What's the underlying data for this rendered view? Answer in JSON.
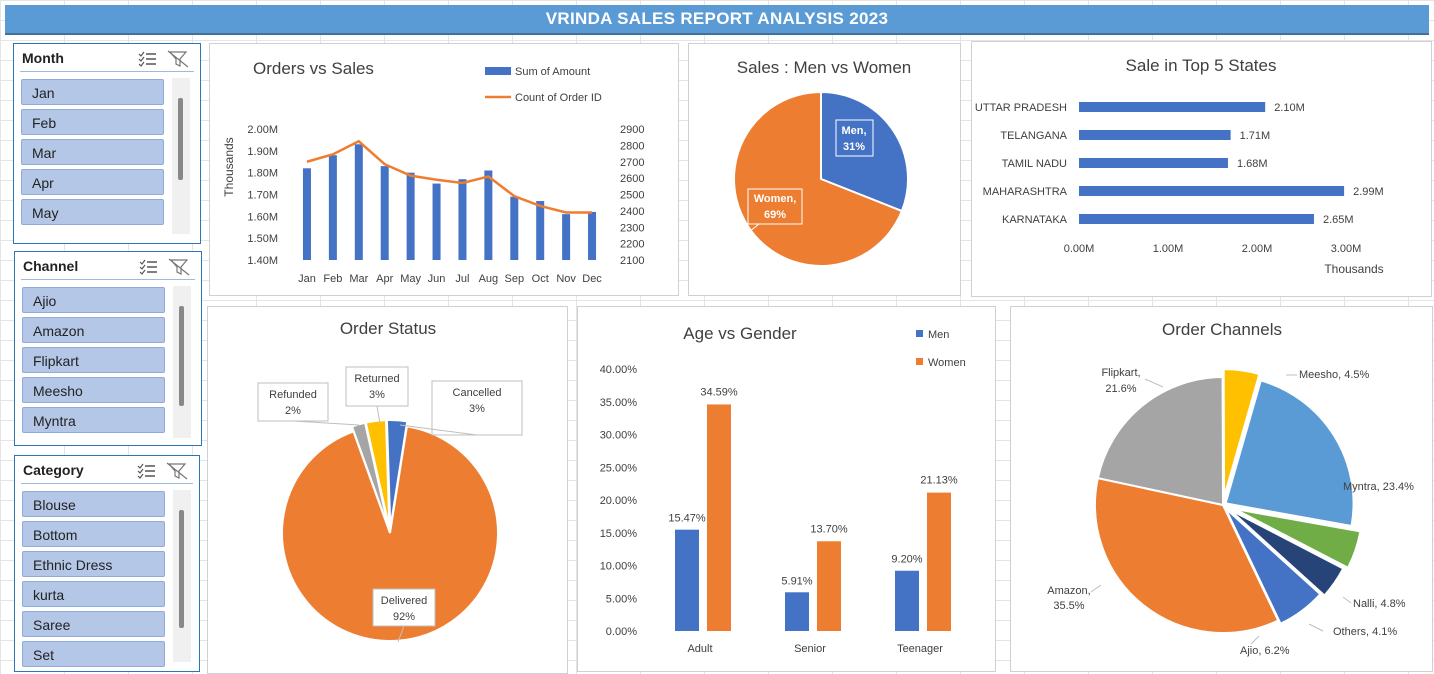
{
  "title": "VRINDA SALES REPORT ANALYSIS 2023",
  "colors": {
    "blue": "#4472c4",
    "orange": "#ed7d31",
    "gray": "#a5a5a5",
    "gold": "#ffc000",
    "light_blue": "#5b9bd5",
    "green": "#70ad47",
    "navy": "#264478",
    "banner": "#5b9bd5",
    "slicer_item": "#b4c7e7"
  },
  "slicers": {
    "month": {
      "header": "Month",
      "items": [
        "Jan",
        "Feb",
        "Mar",
        "Apr",
        "May"
      ]
    },
    "channel": {
      "header": "Channel",
      "items": [
        "Ajio",
        "Amazon",
        "Flipkart",
        "Meesho",
        "Myntra"
      ]
    },
    "category": {
      "header": "Category",
      "items": [
        "Blouse",
        "Bottom",
        "Ethnic Dress",
        "kurta",
        "Saree",
        "Set"
      ]
    }
  },
  "icons": {
    "multi_select": "multi-select-icon",
    "clear_filter": "clear-filter-icon"
  },
  "chart_data": [
    {
      "id": "orders_vs_sales",
      "type": "bar",
      "title": "Orders vs Sales",
      "categories": [
        "Jan",
        "Feb",
        "Mar",
        "Apr",
        "May",
        "Jun",
        "Jul",
        "Aug",
        "Sep",
        "Oct",
        "Nov",
        "Dec"
      ],
      "series": [
        {
          "name": "Sum of Amount",
          "type": "bar",
          "axis": "left",
          "values": [
            1.82,
            1.88,
            1.93,
            1.83,
            1.8,
            1.75,
            1.77,
            1.81,
            1.69,
            1.67,
            1.61,
            1.62
          ]
        },
        {
          "name": "Count of Order ID",
          "type": "line",
          "axis": "right",
          "values": [
            2700,
            2745,
            2825,
            2685,
            2615,
            2590,
            2570,
            2610,
            2490,
            2430,
            2390,
            2390
          ]
        }
      ],
      "ylabel": "Thousands",
      "y_left_ticks": [
        "2.00M",
        "1.90M",
        "1.80M",
        "1.70M",
        "1.60M",
        "1.50M",
        "1.40M"
      ],
      "ylim_left": [
        1.4,
        2.0
      ],
      "y_right_ticks": [
        "2900",
        "2800",
        "2700",
        "2600",
        "2500",
        "2400",
        "2300",
        "2200",
        "2100"
      ],
      "ylim_right": [
        2100,
        2900
      ],
      "legend": "top-right"
    },
    {
      "id": "sales_men_women",
      "type": "pie",
      "title": "Sales : Men vs Women",
      "slices": [
        {
          "label": "Men",
          "value": 31,
          "text": "31%"
        },
        {
          "label": "Women",
          "value": 69,
          "text": "69%"
        }
      ]
    },
    {
      "id": "top5_states",
      "type": "bar",
      "orientation": "horizontal",
      "title": "Sale in Top 5 States",
      "categories": [
        "UTTAR PRADESH",
        "TELANGANA",
        "TAMIL NADU",
        "MAHARASHTRA",
        "KARNATAKA"
      ],
      "values": [
        2.1,
        1.71,
        1.68,
        2.99,
        2.65
      ],
      "value_labels": [
        "2.10M",
        "1.71M",
        "1.68M",
        "2.99M",
        "2.65M"
      ],
      "x_ticks": [
        "0.00M",
        "1.00M",
        "2.00M",
        "3.00M"
      ],
      "xlim": [
        0,
        3
      ],
      "xlabel": "Thousands"
    },
    {
      "id": "order_status",
      "type": "pie",
      "title": "Order Status",
      "slices": [
        {
          "label": "Delivered",
          "value": 92,
          "text": "92%"
        },
        {
          "label": "Refunded",
          "value": 2,
          "text": "2%"
        },
        {
          "label": "Returned",
          "value": 3,
          "text": "3%"
        },
        {
          "label": "Cancelled",
          "value": 3,
          "text": "3%"
        }
      ]
    },
    {
      "id": "age_vs_gender",
      "type": "bar",
      "title": "Age vs Gender",
      "categories": [
        "Adult",
        "Senior",
        "Teenager"
      ],
      "series": [
        {
          "name": "Men",
          "values": [
            15.47,
            5.91,
            9.2
          ],
          "labels": [
            "15.47%",
            "5.91%",
            "9.20%"
          ]
        },
        {
          "name": "Women",
          "values": [
            34.59,
            13.7,
            21.13
          ],
          "labels": [
            "34.59%",
            "13.70%",
            "21.13%"
          ]
        }
      ],
      "y_ticks": [
        "40.00%",
        "35.00%",
        "30.00%",
        "25.00%",
        "20.00%",
        "15.00%",
        "10.00%",
        "5.00%",
        "0.00%"
      ],
      "ylim": [
        0,
        40
      ],
      "legend": "top-right"
    },
    {
      "id": "order_channels",
      "type": "pie",
      "title": "Order Channels",
      "slices": [
        {
          "label": "Myntra",
          "value": 23.4,
          "text": "Myntra, 23.4%"
        },
        {
          "label": "Nalli",
          "value": 4.8,
          "text": "Nalli, 4.8%"
        },
        {
          "label": "Others",
          "value": 4.1,
          "text": "Others, 4.1%"
        },
        {
          "label": "Ajio",
          "value": 6.2,
          "text": "Ajio, 6.2%"
        },
        {
          "label": "Amazon",
          "value": 35.5,
          "text": "Amazon, 35.5%"
        },
        {
          "label": "Flipkart",
          "value": 21.6,
          "text": "Flipkart, 21.6%"
        },
        {
          "label": "Meesho",
          "value": 4.5,
          "text": "Meesho, 4.5%"
        }
      ]
    }
  ]
}
